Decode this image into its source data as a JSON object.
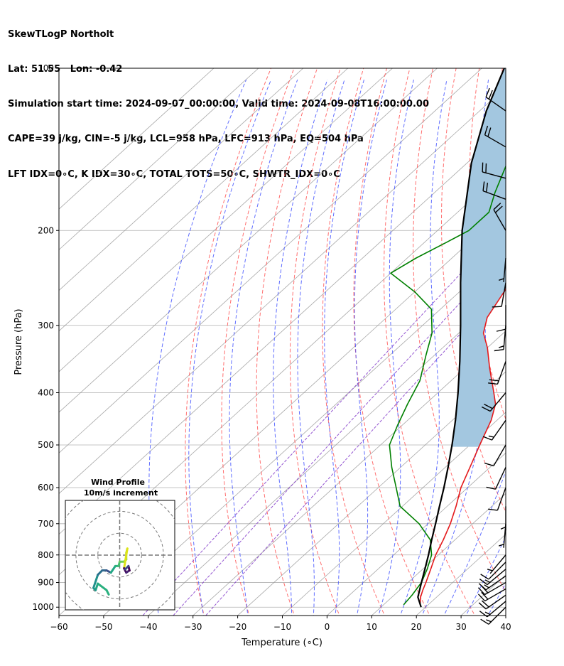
{
  "header": {
    "line1": "SkewTLogP Northolt",
    "line2": "Lat: 51.55   Lon: -0.42",
    "line3": "Simulation start time: 2024-09-07_00:00:00, Valid time: 2024-09-08T16:00:00.00",
    "line4": "CAPE=39 j/kg, CIN=-5 j/kg, LCL=958 hPa, LFC=913 hPa, EQ=504 hPa",
    "line5": "LFT IDX=0∘C, K IDX=30∘C, TOTAL TOTS=50∘C, SHWTR_IDX=0∘C"
  },
  "chart_data": {
    "type": "skewt",
    "xlabel": "Temperature (∘C)",
    "ylabel": "Pressure (hPa)",
    "xlim": [
      -60,
      40
    ],
    "ylim": [
      1050,
      100
    ],
    "x_ticks": [
      "−60",
      "−50",
      "−40",
      "−30",
      "−20",
      "−10",
      "0",
      "10",
      "20",
      "30",
      "40"
    ],
    "x_tick_values": [
      -60,
      -50,
      -40,
      -30,
      -20,
      -10,
      0,
      10,
      20,
      30,
      40
    ],
    "y_ticks": [
      "100",
      "200",
      "300",
      "400",
      "500",
      "600",
      "700",
      "800",
      "900",
      "1000"
    ],
    "y_tick_values": [
      100,
      200,
      300,
      400,
      500,
      600,
      700,
      800,
      900,
      1000
    ],
    "colors": {
      "temperature": "#e41a1c",
      "dewpoint": "#008000",
      "parcel": "#000000",
      "cape": "#a3c7e0",
      "dry_adiabat": "#ff5555",
      "moist_adiabat": "#4455ff",
      "mixing_ratio": "#8844cc",
      "isotherm": "#999999"
    },
    "temperature_profile": [
      {
        "p": 990,
        "t": 18.2
      },
      {
        "p": 960,
        "t": 16.5
      },
      {
        "p": 930,
        "t": 15.2
      },
      {
        "p": 900,
        "t": 14.0
      },
      {
        "p": 850,
        "t": 11.8
      },
      {
        "p": 800,
        "t": 9.4
      },
      {
        "p": 750,
        "t": 7.4
      },
      {
        "p": 700,
        "t": 5.0
      },
      {
        "p": 650,
        "t": 2.0
      },
      {
        "p": 600,
        "t": -1.5
      },
      {
        "p": 550,
        "t": -4.5
      },
      {
        "p": 500,
        "t": -7.8
      },
      {
        "p": 450,
        "t": -11.3
      },
      {
        "p": 420,
        "t": -14.3
      },
      {
        "p": 400,
        "t": -17.5
      },
      {
        "p": 360,
        "t": -24.5
      },
      {
        "p": 330,
        "t": -30.0
      },
      {
        "p": 310,
        "t": -34.5
      },
      {
        "p": 290,
        "t": -37.5
      },
      {
        "p": 260,
        "t": -40.0
      },
      {
        "p": 240,
        "t": -42.5
      },
      {
        "p": 220,
        "t": -45.5
      },
      {
        "p": 200,
        "t": -49.5
      },
      {
        "p": 180,
        "t": -54.0
      },
      {
        "p": 160,
        "t": -57.5
      },
      {
        "p": 150,
        "t": -60.5
      },
      {
        "p": 140,
        "t": -64.0
      },
      {
        "p": 130,
        "t": -65.5
      },
      {
        "p": 120,
        "t": -68.0
      },
      {
        "p": 110,
        "t": -72.0
      },
      {
        "p": 100,
        "t": -75.0
      }
    ],
    "dewpoint_profile": [
      {
        "p": 990,
        "t": 14.5
      },
      {
        "p": 950,
        "t": 14.0
      },
      {
        "p": 900,
        "t": 13.0
      },
      {
        "p": 850,
        "t": 11.0
      },
      {
        "p": 800,
        "t": 8.5
      },
      {
        "p": 750,
        "t": 4.5
      },
      {
        "p": 700,
        "t": -2.0
      },
      {
        "p": 650,
        "t": -10.5
      },
      {
        "p": 600,
        "t": -16.0
      },
      {
        "p": 550,
        "t": -22.0
      },
      {
        "p": 500,
        "t": -28.0
      },
      {
        "p": 460,
        "t": -31.0
      },
      {
        "p": 420,
        "t": -34.0
      },
      {
        "p": 380,
        "t": -37.0
      },
      {
        "p": 340,
        "t": -42.0
      },
      {
        "p": 310,
        "t": -46.0
      },
      {
        "p": 280,
        "t": -52.0
      },
      {
        "p": 260,
        "t": -60.0
      },
      {
        "p": 240,
        "t": -70.0
      },
      {
        "p": 225,
        "t": -68.0
      },
      {
        "p": 210,
        "t": -65.0
      },
      {
        "p": 200,
        "t": -63.0
      },
      {
        "p": 185,
        "t": -63.0
      },
      {
        "p": 170,
        "t": -66.5
      },
      {
        "p": 150,
        "t": -71.0
      },
      {
        "p": 130,
        "t": -76.0
      },
      {
        "p": 115,
        "t": -80.0
      },
      {
        "p": 100,
        "t": -85.0
      }
    ],
    "parcel_profile": [
      {
        "p": 1000,
        "t": 19.0
      },
      {
        "p": 958,
        "t": 15.8
      },
      {
        "p": 900,
        "t": 13.0
      },
      {
        "p": 850,
        "t": 10.5
      },
      {
        "p": 800,
        "t": 7.8
      },
      {
        "p": 750,
        "t": 4.8
      },
      {
        "p": 700,
        "t": 1.7
      },
      {
        "p": 650,
        "t": -1.7
      },
      {
        "p": 600,
        "t": -5.3
      },
      {
        "p": 550,
        "t": -9.4
      },
      {
        "p": 500,
        "t": -14.0
      },
      {
        "p": 450,
        "t": -19.3
      },
      {
        "p": 400,
        "t": -25.5
      },
      {
        "p": 350,
        "t": -32.8
      },
      {
        "p": 300,
        "t": -41.5
      },
      {
        "p": 250,
        "t": -52.0
      },
      {
        "p": 200,
        "t": -64.5
      },
      {
        "p": 150,
        "t": -79.0
      },
      {
        "p": 120,
        "t": -88.5
      },
      {
        "p": 100,
        "t": -95.0
      }
    ],
    "cape_region": {
      "bottom_p": 504,
      "top_p": 100
    },
    "dry_adiabats_theta_c": [
      -30,
      -20,
      -10,
      0,
      10,
      20,
      30,
      40,
      50,
      60,
      70,
      80,
      90,
      100,
      110,
      120,
      130,
      140,
      150,
      160,
      170,
      180,
      190,
      200,
      220,
      240
    ],
    "moist_adiabats_t_c": [
      -40,
      -30,
      -20,
      -10,
      -5,
      0,
      5,
      10,
      15,
      20,
      25,
      30,
      35
    ],
    "mixing_ratio_lines_gkg": [
      0.1,
      0.2,
      0.4
    ],
    "isotherms_c": [
      -160,
      -150,
      -140,
      -130,
      -120,
      -110,
      -100,
      -90,
      -80,
      -70,
      -60,
      -50,
      -40,
      -30,
      -20,
      -10,
      0,
      10,
      20,
      30,
      40
    ],
    "wind_barbs": [
      {
        "p": 1000,
        "dir": 225,
        "spd_kt": 15
      },
      {
        "p": 975,
        "dir": 230,
        "spd_kt": 18
      },
      {
        "p": 950,
        "dir": 235,
        "spd_kt": 20
      },
      {
        "p": 925,
        "dir": 240,
        "spd_kt": 20
      },
      {
        "p": 900,
        "dir": 240,
        "spd_kt": 20
      },
      {
        "p": 875,
        "dir": 235,
        "spd_kt": 18
      },
      {
        "p": 850,
        "dir": 230,
        "spd_kt": 15
      },
      {
        "p": 825,
        "dir": 225,
        "spd_kt": 12
      },
      {
        "p": 800,
        "dir": 220,
        "spd_kt": 8
      },
      {
        "p": 700,
        "dir": 185,
        "spd_kt": 5
      },
      {
        "p": 650,
        "dir": 180,
        "spd_kt": 5
      },
      {
        "p": 600,
        "dir": 200,
        "spd_kt": 10
      },
      {
        "p": 550,
        "dir": 205,
        "spd_kt": 12
      },
      {
        "p": 500,
        "dir": 210,
        "spd_kt": 12
      },
      {
        "p": 450,
        "dir": 215,
        "spd_kt": 15
      },
      {
        "p": 400,
        "dir": 220,
        "spd_kt": 20
      },
      {
        "p": 350,
        "dir": 200,
        "spd_kt": 20
      },
      {
        "p": 300,
        "dir": 185,
        "spd_kt": 15
      },
      {
        "p": 275,
        "dir": 180,
        "spd_kt": 10
      },
      {
        "p": 250,
        "dir": 190,
        "spd_kt": 12
      },
      {
        "p": 225,
        "dir": 185,
        "spd_kt": 8
      },
      {
        "p": 200,
        "dir": 330,
        "spd_kt": 20
      },
      {
        "p": 175,
        "dir": 290,
        "spd_kt": 20
      },
      {
        "p": 160,
        "dir": 285,
        "spd_kt": 20
      },
      {
        "p": 140,
        "dir": 300,
        "spd_kt": 20
      },
      {
        "p": 120,
        "dir": 305,
        "spd_kt": 20
      }
    ],
    "hodograph": {
      "title": "Wind Profile",
      "subtitle": "10m/s increment",
      "rings_ms": [
        10,
        20,
        30
      ],
      "range_ms": 25,
      "points": [
        {
          "u": -5,
          "v": -18,
          "c": "#2ab07f"
        },
        {
          "u": -6,
          "v": -16,
          "c": "#2ab07f"
        },
        {
          "u": -10,
          "v": -13,
          "c": "#24a884"
        },
        {
          "u": -11,
          "v": -16,
          "c": "#1f9a8a"
        },
        {
          "u": -12,
          "v": -15,
          "c": "#21918c"
        },
        {
          "u": -10,
          "v": -9,
          "c": "#2c728e"
        },
        {
          "u": -8,
          "v": -7,
          "c": "#31688e"
        },
        {
          "u": -6,
          "v": -7,
          "c": "#3b528b"
        },
        {
          "u": -4,
          "v": -8,
          "c": "#22a785"
        },
        {
          "u": -2,
          "v": -5,
          "c": "#2ab07f"
        },
        {
          "u": -0.5,
          "v": -5,
          "c": "#44bf70"
        },
        {
          "u": 0,
          "v": -3,
          "c": "#6ccd5a"
        },
        {
          "u": 2,
          "v": -3,
          "c": "#84d44b"
        },
        {
          "u": 3,
          "v": -2,
          "c": "#a5db36"
        },
        {
          "u": 3,
          "v": 1,
          "c": "#c2df23"
        },
        {
          "u": 3.5,
          "v": 3,
          "c": "#dde318"
        },
        {
          "u": 2,
          "v": -6,
          "c": "#440154"
        },
        {
          "u": 3,
          "v": -8,
          "c": "#482475"
        },
        {
          "u": 4.5,
          "v": -7,
          "c": "#440154"
        },
        {
          "u": 4,
          "v": -5,
          "c": "#3e4989"
        },
        {
          "u": 2.5,
          "v": -6.5,
          "c": "#440154"
        }
      ]
    }
  }
}
